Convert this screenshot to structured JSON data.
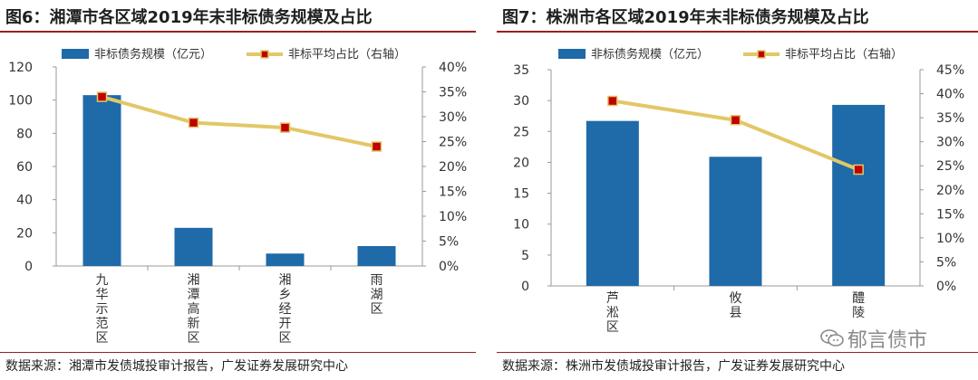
{
  "watermark": "郁言债市",
  "colors": {
    "bar": "#1f6aa8",
    "line": "#e3c766",
    "marker": "#c00000",
    "axis": "#999999",
    "text": "#333333",
    "accent": "#9a1f1f"
  },
  "panels": [
    {
      "title": "图6：湘潭市各区域2019年末非标债务规模及占比",
      "source": "数据来源：湘潭市发债城投审计报告，广发证券发展研究中心",
      "chart_data": {
        "type": "bar+line",
        "categories": [
          "九华示范区",
          "湘潭高新区",
          "湘乡经开区",
          "雨湖区"
        ],
        "series": [
          {
            "name": "非标债务规模（亿元）",
            "type": "bar",
            "axis": "left",
            "values": [
              103,
              23,
              7.5,
              12
            ]
          },
          {
            "name": "非标平均占比（右轴）",
            "type": "line",
            "axis": "right",
            "values": [
              0.34,
              0.288,
              0.278,
              0.24
            ]
          }
        ],
        "y_left": {
          "min": 0,
          "max": 120,
          "step": 20,
          "ticks": [
            "0",
            "20",
            "40",
            "60",
            "80",
            "100",
            "120"
          ]
        },
        "y_right": {
          "min": 0,
          "max": 0.4,
          "step": 0.05,
          "ticks": [
            "0%",
            "5%",
            "10%",
            "15%",
            "20%",
            "25%",
            "30%",
            "35%",
            "40%"
          ]
        },
        "legend_position": "top",
        "grid": false
      }
    },
    {
      "title": "图7：株洲市各区域2019年末非标债务规模及占比",
      "source": "数据来源：株洲市发债城投审计报告，广发证券发展研究中心",
      "chart_data": {
        "type": "bar+line",
        "categories": [
          "芦淞区",
          "攸县",
          "醴陵"
        ],
        "series": [
          {
            "name": "非标债务规模（亿元）",
            "type": "bar",
            "axis": "left",
            "values": [
              26.7,
              20.9,
              29.3
            ]
          },
          {
            "name": "非标平均占比（右轴）",
            "type": "line",
            "axis": "right",
            "values": [
              0.385,
              0.345,
              0.242
            ]
          }
        ],
        "y_left": {
          "min": 0,
          "max": 35,
          "step": 5,
          "ticks": [
            "0",
            "5",
            "10",
            "15",
            "20",
            "25",
            "30",
            "35"
          ]
        },
        "y_right": {
          "min": 0,
          "max": 0.45,
          "step": 0.05,
          "ticks": [
            "0%",
            "5%",
            "10%",
            "15%",
            "20%",
            "25%",
            "30%",
            "35%",
            "40%",
            "45%"
          ]
        },
        "legend_position": "top",
        "grid": false
      }
    }
  ]
}
